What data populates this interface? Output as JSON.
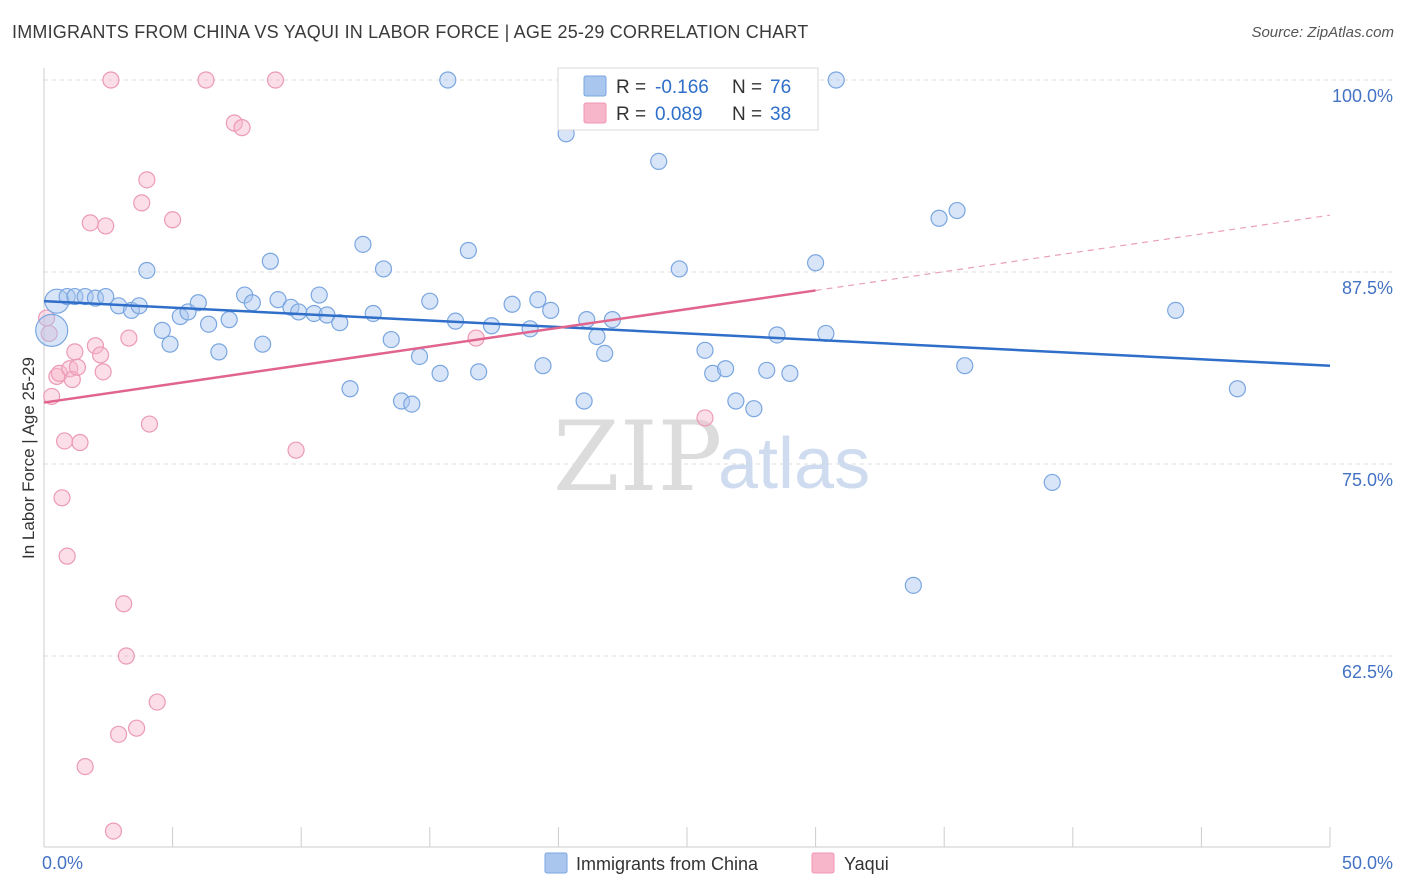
{
  "title": "IMMIGRANTS FROM CHINA VS YAQUI IN LABOR FORCE | AGE 25-29 CORRELATION CHART",
  "source": "Source: ZipAtlas.com",
  "watermark": {
    "zip": "ZIP",
    "atlas": "atlas"
  },
  "legend": {
    "r_label": "R =",
    "n_label": "N =",
    "series": [
      {
        "r": "-0.166",
        "n": "76",
        "color": "#a9c6ef"
      },
      {
        "r": "0.089",
        "n": "38",
        "color": "#f7b6c9"
      }
    ]
  },
  "bottom_legend": [
    "Immigrants from China",
    "Yaqui"
  ],
  "colors": {
    "china": "#5b93de",
    "yaqui": "#ec7fa2",
    "china_line": "#2f6fc9",
    "yaqui_line": "#e0648e"
  },
  "chart_data": {
    "type": "scatter",
    "title": "IMMIGRANTS FROM CHINA VS YAQUI IN LABOR FORCE | AGE 25-29 CORRELATION CHART",
    "xlabel": "",
    "ylabel": "In Labor Force | Age 25-29",
    "xlim": [
      0,
      50
    ],
    "ylim": [
      52,
      101
    ],
    "x_ticks_labels": [
      "0.0%",
      "50.0%"
    ],
    "y_ticks": [
      62.5,
      75.0,
      87.5,
      100.0
    ],
    "y_ticks_labels": [
      "62.5%",
      "75.0%",
      "87.5%",
      "100.0%"
    ],
    "grid": "horizontal dashed",
    "legend_position": "top-center",
    "series": [
      {
        "name": "Immigrants from China",
        "r": -0.166,
        "n": 76,
        "trend": {
          "x": [
            0,
            50
          ],
          "y": [
            85.6,
            81.4
          ]
        },
        "points": [
          [
            0.3,
            83.7
          ],
          [
            0.5,
            85.6
          ],
          [
            0.9,
            85.9
          ],
          [
            1.2,
            85.9
          ],
          [
            1.6,
            85.9
          ],
          [
            2.0,
            85.8
          ],
          [
            2.4,
            85.9
          ],
          [
            2.9,
            85.3
          ],
          [
            3.4,
            85.0
          ],
          [
            3.7,
            85.3
          ],
          [
            4.0,
            87.6
          ],
          [
            4.6,
            83.7
          ],
          [
            4.9,
            82.8
          ],
          [
            5.3,
            84.6
          ],
          [
            5.6,
            84.9
          ],
          [
            6.0,
            85.5
          ],
          [
            6.4,
            84.1
          ],
          [
            6.8,
            82.3
          ],
          [
            7.2,
            84.4
          ],
          [
            7.8,
            86.0
          ],
          [
            8.1,
            85.5
          ],
          [
            8.5,
            82.8
          ],
          [
            8.8,
            88.2
          ],
          [
            9.1,
            85.7
          ],
          [
            9.6,
            85.2
          ],
          [
            9.9,
            84.9
          ],
          [
            10.5,
            84.8
          ],
          [
            10.7,
            86.0
          ],
          [
            11.0,
            84.7
          ],
          [
            11.5,
            84.2
          ],
          [
            11.9,
            79.9
          ],
          [
            12.4,
            89.3
          ],
          [
            12.8,
            84.8
          ],
          [
            13.2,
            87.7
          ],
          [
            13.5,
            83.1
          ],
          [
            13.9,
            79.1
          ],
          [
            14.3,
            78.9
          ],
          [
            14.6,
            82.0
          ],
          [
            15.0,
            85.6
          ],
          [
            15.4,
            80.9
          ],
          [
            15.7,
            100.0
          ],
          [
            16.0,
            84.3
          ],
          [
            16.5,
            88.9
          ],
          [
            16.9,
            81.0
          ],
          [
            17.4,
            84.0
          ],
          [
            18.2,
            85.4
          ],
          [
            18.9,
            83.8
          ],
          [
            19.2,
            85.7
          ],
          [
            19.4,
            81.4
          ],
          [
            19.7,
            85.0
          ],
          [
            20.3,
            96.5
          ],
          [
            21.0,
            79.1
          ],
          [
            21.1,
            84.4
          ],
          [
            21.5,
            83.3
          ],
          [
            21.8,
            82.2
          ],
          [
            22.1,
            84.4
          ],
          [
            23.9,
            94.7
          ],
          [
            24.7,
            87.7
          ],
          [
            25.7,
            82.4
          ],
          [
            26.0,
            80.9
          ],
          [
            26.5,
            81.2
          ],
          [
            26.9,
            79.1
          ],
          [
            27.6,
            78.6
          ],
          [
            28.1,
            81.1
          ],
          [
            28.5,
            83.4
          ],
          [
            29.0,
            80.9
          ],
          [
            30.0,
            88.1
          ],
          [
            30.4,
            83.5
          ],
          [
            30.8,
            100.0
          ],
          [
            33.8,
            67.1
          ],
          [
            34.8,
            91.0
          ],
          [
            35.5,
            91.5
          ],
          [
            35.8,
            81.4
          ],
          [
            39.2,
            73.8
          ],
          [
            46.4,
            79.9
          ],
          [
            44.0,
            85.0
          ]
        ]
      },
      {
        "name": "Yaqui",
        "r": 0.089,
        "n": 38,
        "trend": {
          "x": [
            0,
            30
          ],
          "y": [
            79.0,
            86.3
          ],
          "dashed_extension": {
            "x": [
              30,
              50
            ],
            "y": [
              86.3,
              91.2
            ]
          }
        },
        "points": [
          [
            0.2,
            83.5
          ],
          [
            0.3,
            79.4
          ],
          [
            0.5,
            80.7
          ],
          [
            0.6,
            80.9
          ],
          [
            0.7,
            72.8
          ],
          [
            0.8,
            76.5
          ],
          [
            0.9,
            69.0
          ],
          [
            1.0,
            81.2
          ],
          [
            1.1,
            80.5
          ],
          [
            1.2,
            82.3
          ],
          [
            1.3,
            81.3
          ],
          [
            1.4,
            76.4
          ],
          [
            1.6,
            55.3
          ],
          [
            1.8,
            90.7
          ],
          [
            2.0,
            82.7
          ],
          [
            2.2,
            82.1
          ],
          [
            2.3,
            81.0
          ],
          [
            2.4,
            90.5
          ],
          [
            2.6,
            100.0
          ],
          [
            2.7,
            51.1
          ],
          [
            2.9,
            57.4
          ],
          [
            3.1,
            65.9
          ],
          [
            3.2,
            62.5
          ],
          [
            3.3,
            83.2
          ],
          [
            3.6,
            57.8
          ],
          [
            3.8,
            92.0
          ],
          [
            4.0,
            93.5
          ],
          [
            4.1,
            77.6
          ],
          [
            4.4,
            59.5
          ],
          [
            5.0,
            90.9
          ],
          [
            6.3,
            100.0
          ],
          [
            7.4,
            97.2
          ],
          [
            7.7,
            96.9
          ],
          [
            9.0,
            100.0
          ],
          [
            9.8,
            75.9
          ],
          [
            16.8,
            83.2
          ],
          [
            25.7,
            78.0
          ],
          [
            0.1,
            84.5
          ]
        ]
      }
    ]
  }
}
